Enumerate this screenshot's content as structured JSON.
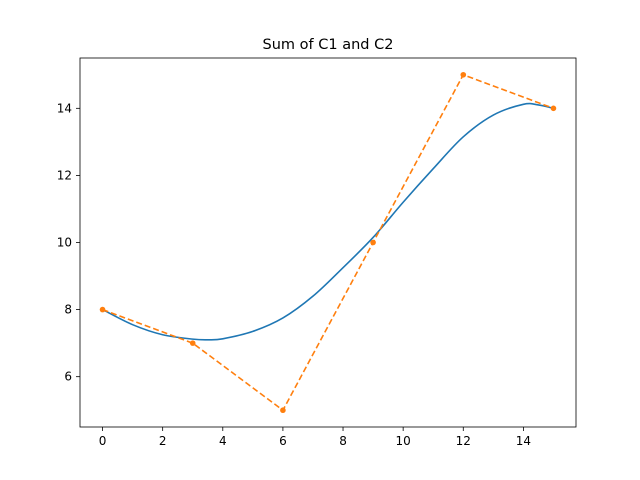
{
  "chart_data": {
    "type": "line",
    "title": "Sum of C1 and C2",
    "xlabel": "",
    "ylabel": "",
    "xlim": [
      -0.75,
      15.75
    ],
    "ylim": [
      4.5,
      15.5
    ],
    "x_ticks": [
      0,
      2,
      4,
      6,
      8,
      10,
      12,
      14
    ],
    "y_ticks": [
      6,
      8,
      10,
      12,
      14
    ],
    "grid": false,
    "legend": "none",
    "series": [
      {
        "style": "solid",
        "color": "#1f77b4",
        "x": [
          0,
          1,
          2,
          3,
          3.5,
          4,
          5,
          6,
          7,
          8,
          9,
          10,
          11,
          12,
          13,
          14,
          14.5,
          15
        ],
        "y": [
          8.0,
          7.55,
          7.25,
          7.12,
          7.1,
          7.13,
          7.35,
          7.75,
          8.4,
          9.25,
          10.15,
          11.2,
          12.2,
          13.15,
          13.8,
          14.12,
          14.1,
          14.0
        ]
      },
      {
        "style": "dashed",
        "marker": "dot",
        "color": "#ff7f0e",
        "x": [
          0,
          3,
          6,
          9,
          12,
          15
        ],
        "y": [
          8,
          7,
          5,
          10,
          15,
          14
        ]
      }
    ]
  }
}
